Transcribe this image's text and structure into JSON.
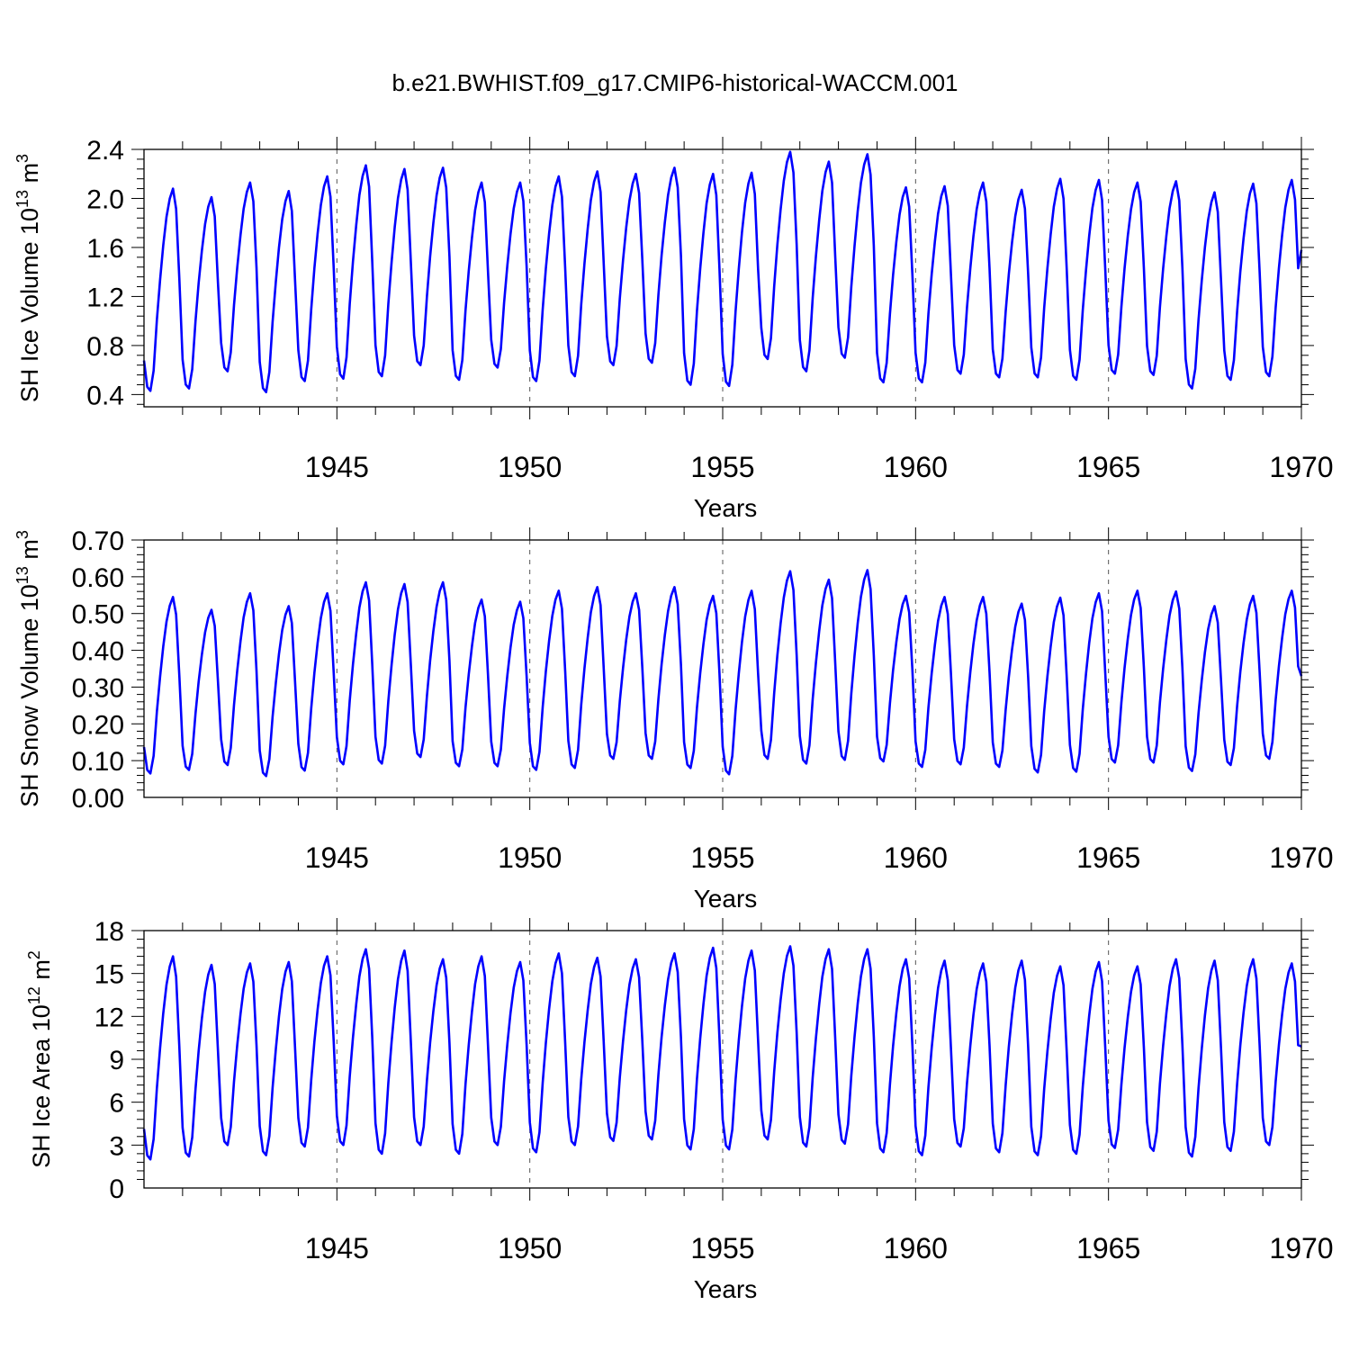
{
  "figure": {
    "title": "b.e21.BWHIST.f09_g17.CMIP6-historical-WACCM.001"
  },
  "styles": {
    "line_color": "#0000ff",
    "axis_color": "#000000",
    "grid_color": "#555555"
  },
  "chart_data": [
    {
      "type": "line",
      "title": "b.e21.BWHIST.f09_g17.CMIP6-historical-WACCM.001",
      "xlabel": "Years",
      "ylabel_main": "SH Ice Volume 10",
      "ylabel_exp": "13",
      "ylabel_unit": " m",
      "ylabel_unit_exp": "3",
      "xlim": [
        1940,
        1970
      ],
      "ylim": [
        0.3,
        2.4
      ],
      "yticks": [
        0.4,
        0.8,
        1.2,
        1.6,
        2.0,
        2.4
      ],
      "ytick_labels": [
        "0.4",
        "0.8",
        "1.2",
        "1.6",
        "2.0",
        "2.4"
      ],
      "xticks": [
        1945,
        1950,
        1955,
        1960,
        1965,
        1970
      ],
      "xtick_labels": [
        "1945",
        "1950",
        "1955",
        "1960",
        "1965",
        "1970"
      ],
      "grid_x": [
        1945,
        1950,
        1955,
        1960,
        1965
      ],
      "series": [
        {
          "start_year": 1940,
          "months_per_year": 12,
          "annual_min": [
            0.43,
            0.45,
            0.59,
            0.42,
            0.51,
            0.53,
            0.55,
            0.64,
            0.52,
            0.62,
            0.51,
            0.55,
            0.64,
            0.66,
            0.48,
            0.47,
            0.69,
            0.59,
            0.7,
            0.5,
            0.5,
            0.57,
            0.54,
            0.54,
            0.52,
            0.57,
            0.56,
            0.45,
            0.52,
            0.55
          ],
          "annual_max": [
            2.08,
            2.01,
            2.13,
            2.06,
            2.18,
            2.27,
            2.24,
            2.25,
            2.13,
            2.13,
            2.18,
            2.22,
            2.2,
            2.25,
            2.2,
            2.21,
            2.38,
            2.3,
            2.36,
            2.09,
            2.1,
            2.13,
            2.07,
            2.16,
            2.15,
            2.13,
            2.14,
            2.05,
            2.12,
            2.15
          ],
          "end_value": 1.58
        }
      ]
    },
    {
      "type": "line",
      "xlabel": "Years",
      "ylabel_main": "SH Snow Volume 10",
      "ylabel_exp": "13",
      "ylabel_unit": " m",
      "ylabel_unit_exp": "3",
      "xlim": [
        1940,
        1970
      ],
      "ylim": [
        0.0,
        0.7
      ],
      "yticks": [
        0.0,
        0.1,
        0.2,
        0.3,
        0.4,
        0.5,
        0.6,
        0.7
      ],
      "ytick_labels": [
        "0.00",
        "0.10",
        "0.20",
        "0.30",
        "0.40",
        "0.50",
        "0.60",
        "0.70"
      ],
      "xticks": [
        1945,
        1950,
        1955,
        1960,
        1965,
        1970
      ],
      "xtick_labels": [
        "1945",
        "1950",
        "1955",
        "1960",
        "1965",
        "1970"
      ],
      "grid_x": [
        1945,
        1950,
        1955,
        1960,
        1965
      ],
      "series": [
        {
          "start_year": 1940,
          "months_per_year": 12,
          "annual_min": [
            0.065,
            0.075,
            0.088,
            0.058,
            0.073,
            0.09,
            0.092,
            0.11,
            0.085,
            0.085,
            0.075,
            0.08,
            0.105,
            0.105,
            0.08,
            0.063,
            0.105,
            0.092,
            0.102,
            0.098,
            0.083,
            0.09,
            0.083,
            0.068,
            0.07,
            0.095,
            0.095,
            0.072,
            0.088,
            0.105
          ],
          "annual_max": [
            0.545,
            0.51,
            0.555,
            0.52,
            0.555,
            0.585,
            0.58,
            0.585,
            0.538,
            0.532,
            0.562,
            0.572,
            0.555,
            0.572,
            0.548,
            0.562,
            0.615,
            0.592,
            0.618,
            0.548,
            0.545,
            0.545,
            0.527,
            0.543,
            0.555,
            0.562,
            0.56,
            0.52,
            0.548,
            0.562
          ],
          "end_value": 0.33
        }
      ]
    },
    {
      "type": "line",
      "xlabel": "Years",
      "ylabel_main": "SH Ice Area 10",
      "ylabel_exp": "12",
      "ylabel_unit": " m",
      "ylabel_unit_exp": "2",
      "xlim": [
        1940,
        1970
      ],
      "ylim": [
        0,
        18
      ],
      "yticks": [
        0,
        3,
        6,
        9,
        12,
        15,
        18
      ],
      "ytick_labels": [
        "0",
        "3",
        "6",
        "9",
        "12",
        "15",
        "18"
      ],
      "xticks": [
        1945,
        1950,
        1955,
        1960,
        1965,
        1970
      ],
      "xtick_labels": [
        "1945",
        "1950",
        "1955",
        "1960",
        "1965",
        "1970"
      ],
      "grid_x": [
        1945,
        1950,
        1955,
        1960,
        1965
      ],
      "series": [
        {
          "start_year": 1940,
          "months_per_year": 12,
          "annual_min": [
            2.0,
            2.2,
            3.0,
            2.3,
            2.9,
            3.0,
            2.4,
            3.0,
            2.4,
            3.0,
            2.5,
            3.0,
            3.3,
            3.4,
            2.7,
            2.7,
            3.4,
            2.9,
            3.1,
            2.5,
            2.3,
            2.9,
            2.5,
            2.3,
            2.4,
            2.8,
            2.6,
            2.2,
            2.6,
            3.0
          ],
          "annual_max": [
            16.2,
            15.6,
            15.7,
            15.8,
            16.2,
            16.7,
            16.6,
            16.0,
            16.2,
            15.8,
            16.4,
            16.1,
            16.0,
            16.4,
            16.8,
            16.6,
            16.9,
            16.7,
            16.7,
            16.0,
            15.9,
            15.7,
            15.9,
            15.5,
            15.8,
            15.5,
            16.0,
            15.9,
            16.0,
            15.7
          ],
          "end_value": 9.9
        }
      ]
    }
  ]
}
